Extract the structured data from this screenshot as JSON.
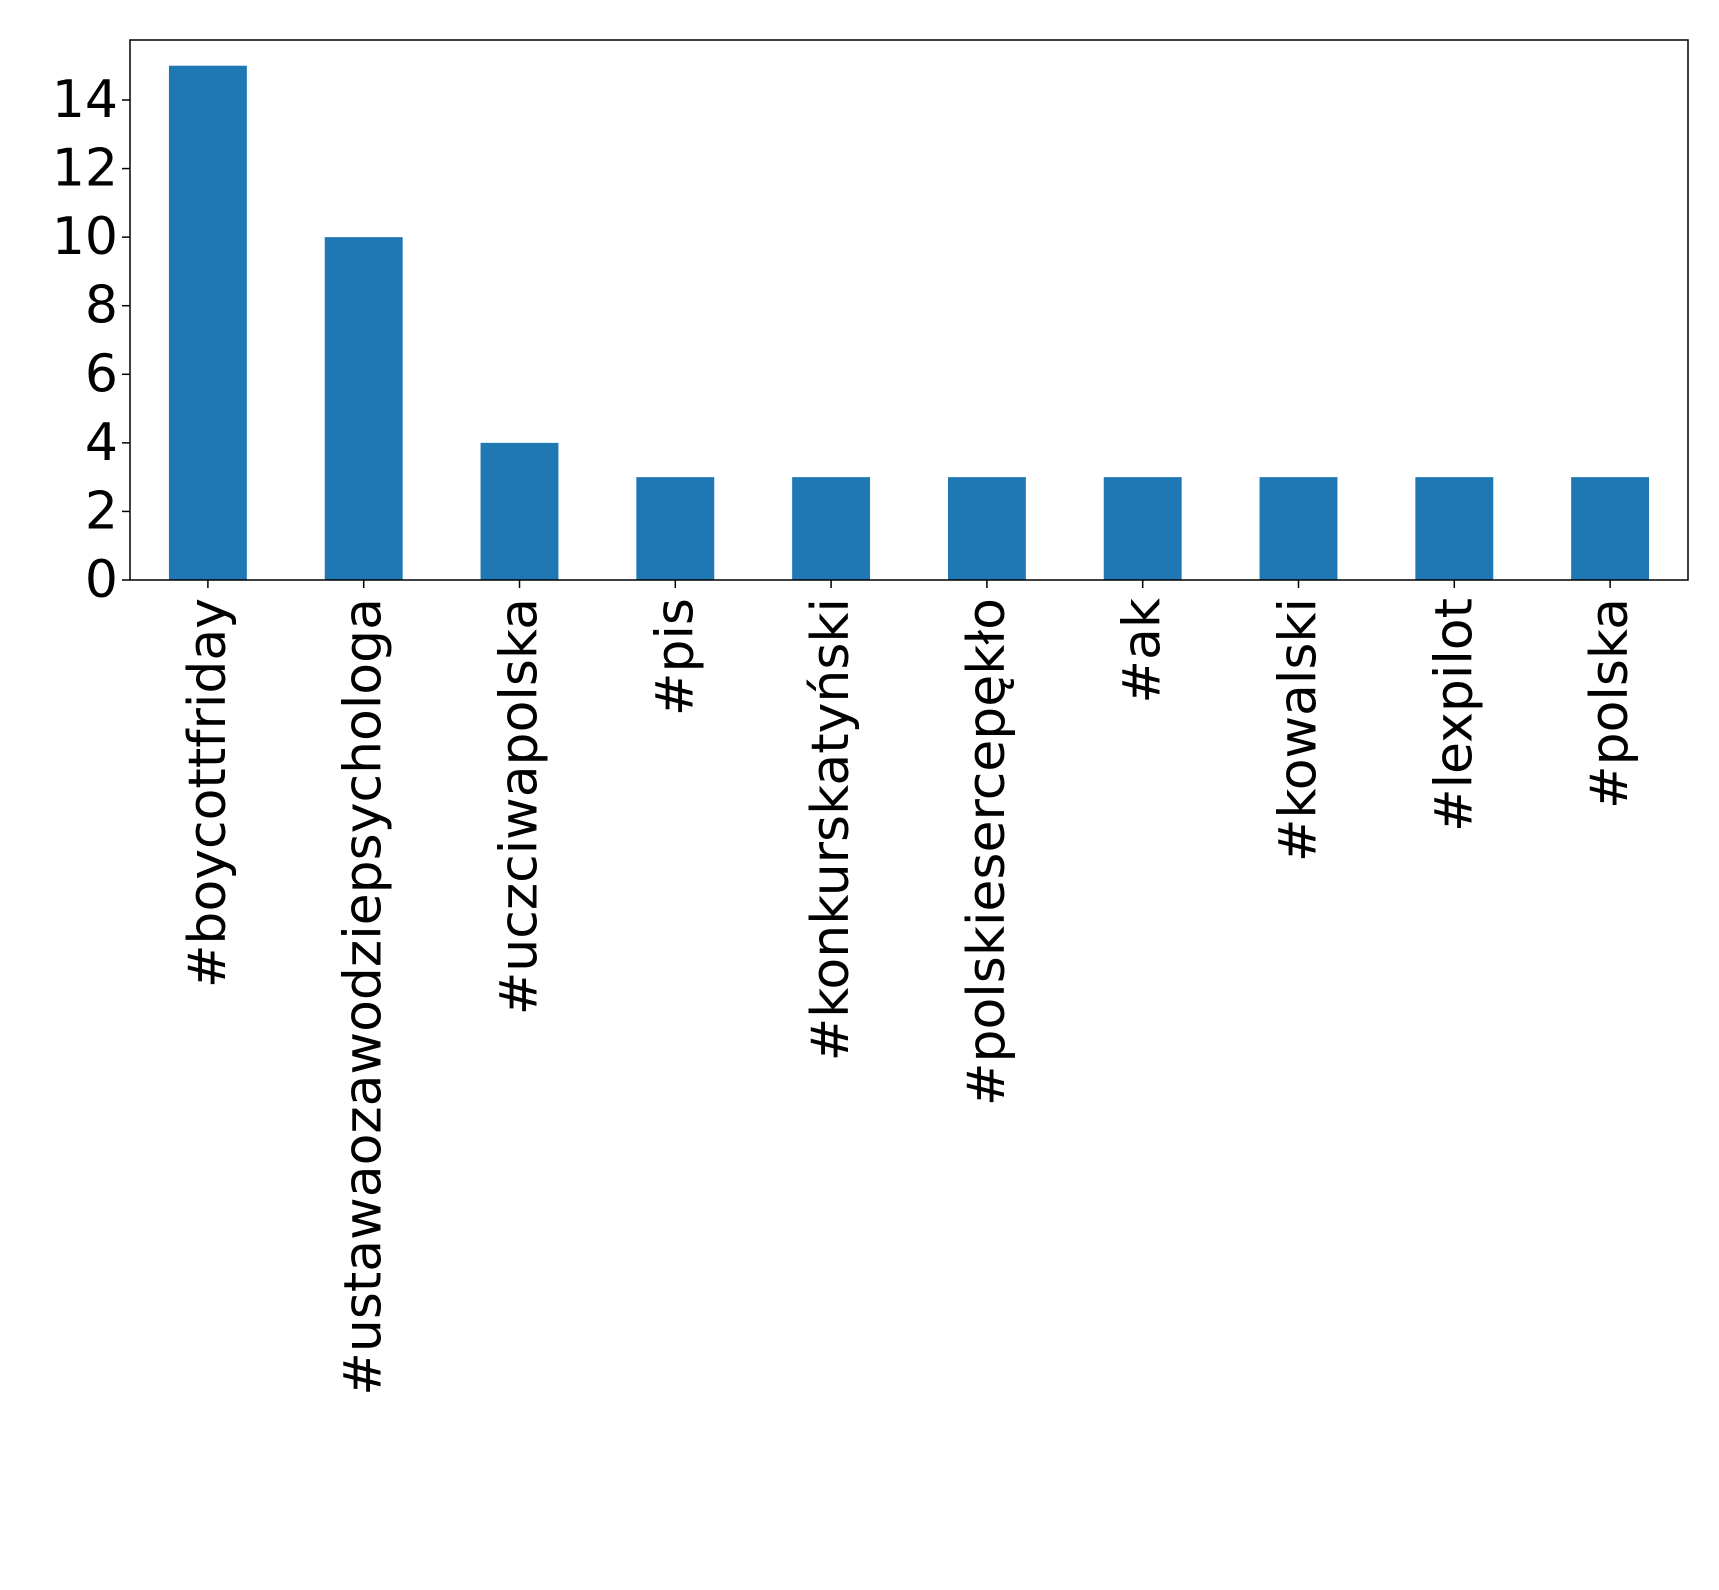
{
  "chart_data": {
    "type": "bar",
    "title": "",
    "xlabel": "",
    "ylabel": "",
    "categories": [
      "#boycottfriday",
      "#ustawaozawodziepsychologa",
      "#uczciwapolska",
      "#pis",
      "#konkurskatyński",
      "#polskieserceрękło",
      "#ak",
      "#kowalski",
      "#lexpilot",
      "#polska"
    ],
    "values": [
      15,
      10,
      4,
      3,
      3,
      3,
      3,
      3,
      3,
      3
    ],
    "ylim": [
      0,
      15.75
    ],
    "yticks": [
      0,
      2,
      4,
      6,
      8,
      10,
      12,
      14
    ],
    "grid": false,
    "legend": "none",
    "bar_color": "#1f77b4",
    "axis_color": "#000000"
  }
}
